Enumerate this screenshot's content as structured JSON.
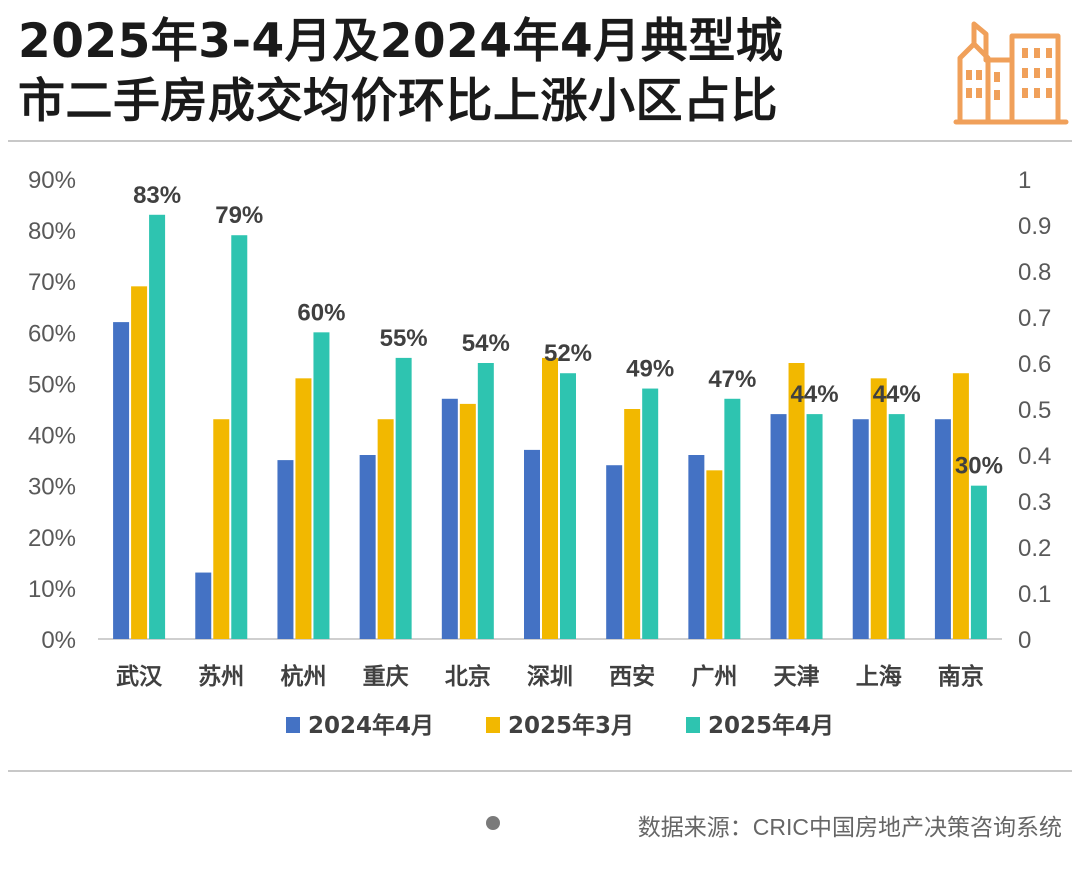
{
  "title_line1": "2025年3-4月及2024年4月典型城",
  "title_line2": "市二手房成交均价环比上涨小区占比",
  "source_text": "数据来源：CRIC中国房地产决策咨询系统",
  "colors": {
    "s2024_04": "#4472c4",
    "s2025_03": "#f2b800",
    "s2025_04": "#2ec4b0",
    "icon": "#f0a05a"
  },
  "chart_data": {
    "type": "bar",
    "categories": [
      "武汉",
      "苏州",
      "杭州",
      "重庆",
      "北京",
      "深圳",
      "西安",
      "广州",
      "天津",
      "上海",
      "南京"
    ],
    "series": [
      {
        "name": "2024年4月",
        "values": [
          62,
          13,
          35,
          36,
          47,
          37,
          34,
          36,
          44,
          43,
          43
        ]
      },
      {
        "name": "2025年3月",
        "values": [
          69,
          43,
          51,
          43,
          46,
          55,
          45,
          33,
          54,
          51,
          52
        ]
      },
      {
        "name": "2025年4月",
        "values": [
          83,
          79,
          60,
          55,
          54,
          52,
          49,
          47,
          44,
          44,
          30
        ]
      }
    ],
    "data_labels": [
      "83%",
      "79%",
      "60%",
      "55%",
      "54%",
      "52%",
      "49%",
      "47%",
      "44%",
      "44%",
      "30%"
    ],
    "ylim": [
      0,
      90
    ],
    "y_ticks": [
      "0%",
      "10%",
      "20%",
      "30%",
      "40%",
      "50%",
      "60%",
      "70%",
      "80%",
      "90%"
    ],
    "y2_ticks": [
      "0",
      "0.1",
      "0.2",
      "0.3",
      "0.4",
      "0.5",
      "0.6",
      "0.7",
      "0.8",
      "0.9",
      "1"
    ],
    "grid": false,
    "legend_position": "bottom-center"
  }
}
